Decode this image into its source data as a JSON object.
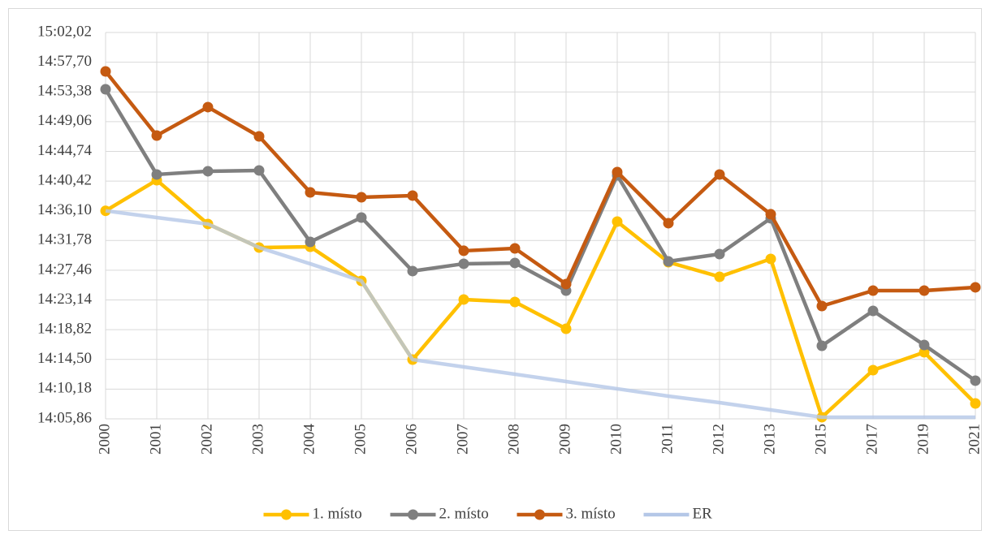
{
  "chart_data": {
    "type": "line",
    "categories": [
      "2000",
      "2001",
      "2002",
      "2003",
      "2004",
      "2005",
      "2006",
      "2007",
      "2008",
      "2009",
      "2010",
      "2011",
      "2012",
      "2013",
      "2015",
      "2017",
      "2019",
      "2021"
    ],
    "series": [
      {
        "name": "1. místo",
        "color": "#FFC000",
        "markers": true,
        "values": [
          876.1,
          880.55,
          874.18,
          870.76,
          870.87,
          865.92,
          854.47,
          863.21,
          862.85,
          858.96,
          874.53,
          868.63,
          866.51,
          869.11,
          846.1,
          852.94,
          855.54,
          848.1
        ]
      },
      {
        "name": "2. místo",
        "color": "#7F7F7F",
        "markers": true,
        "values": [
          893.76,
          881.38,
          881.85,
          881.97,
          871.58,
          875.12,
          867.34,
          868.4,
          868.52,
          864.5,
          881.26,
          868.75,
          869.81,
          875.01,
          856.48,
          861.55,
          856.6,
          851.41
        ]
      },
      {
        "name": "3. místo",
        "color": "#C55A11",
        "markers": true,
        "values": [
          896.36,
          887.04,
          891.17,
          886.92,
          878.78,
          878.07,
          878.31,
          870.29,
          870.64,
          865.45,
          881.73,
          874.3,
          881.38,
          875.6,
          862.26,
          864.5,
          864.5,
          864.98
        ]
      },
      {
        "name": "ER",
        "color": "#B4C7E7",
        "markers": false,
        "values": [
          876.1,
          875.12,
          874.18,
          870.76,
          868.4,
          865.92,
          854.47,
          853.41,
          852.35,
          851.29,
          850.23,
          849.16,
          848.22,
          847.16,
          846.1,
          846.1,
          846.1,
          846.1
        ]
      }
    ],
    "ylim": [
      845.86,
      902.02
    ],
    "yticks": [
      {
        "value": 845.86,
        "label": "14:05,86"
      },
      {
        "value": 850.18,
        "label": "14:10,18"
      },
      {
        "value": 854.5,
        "label": "14:14,50"
      },
      {
        "value": 858.82,
        "label": "14:18,82"
      },
      {
        "value": 863.14,
        "label": "14:23,14"
      },
      {
        "value": 867.46,
        "label": "14:27,46"
      },
      {
        "value": 871.78,
        "label": "14:31,78"
      },
      {
        "value": 876.1,
        "label": "14:36,10"
      },
      {
        "value": 880.42,
        "label": "14:40,42"
      },
      {
        "value": 884.74,
        "label": "14:44,74"
      },
      {
        "value": 889.06,
        "label": "14:49,06"
      },
      {
        "value": 893.38,
        "label": "14:53,38"
      },
      {
        "value": 897.7,
        "label": "14:57,70"
      },
      {
        "value": 902.02,
        "label": "15:02,02"
      }
    ],
    "grid": true,
    "legend": "bottom"
  }
}
